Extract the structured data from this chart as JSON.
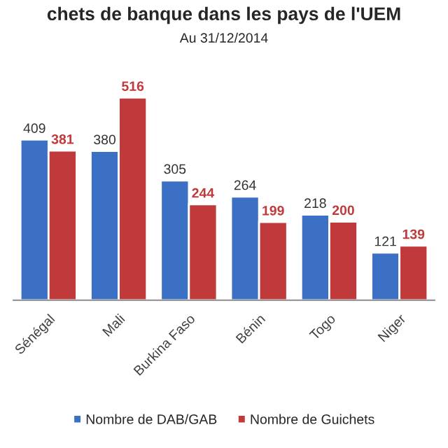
{
  "chart_data": {
    "type": "bar",
    "title": "chets de banque dans les pays de l'UEM",
    "subtitle": "Au 31/12/2014",
    "categories": [
      "Sénégal",
      "Mali",
      "Burkina Faso",
      "Bénin",
      "Togo",
      "Niger"
    ],
    "series": [
      {
        "name": "Nombre de DAB/GAB",
        "color": "#3b70c4",
        "values": [
          409,
          380,
          305,
          264,
          218,
          121
        ]
      },
      {
        "name": "Nombre de Guichets",
        "color": "#c0393b",
        "values": [
          381,
          516,
          244,
          199,
          200,
          139
        ]
      }
    ],
    "data_labels": true,
    "legend": "bottom",
    "grid": false
  }
}
